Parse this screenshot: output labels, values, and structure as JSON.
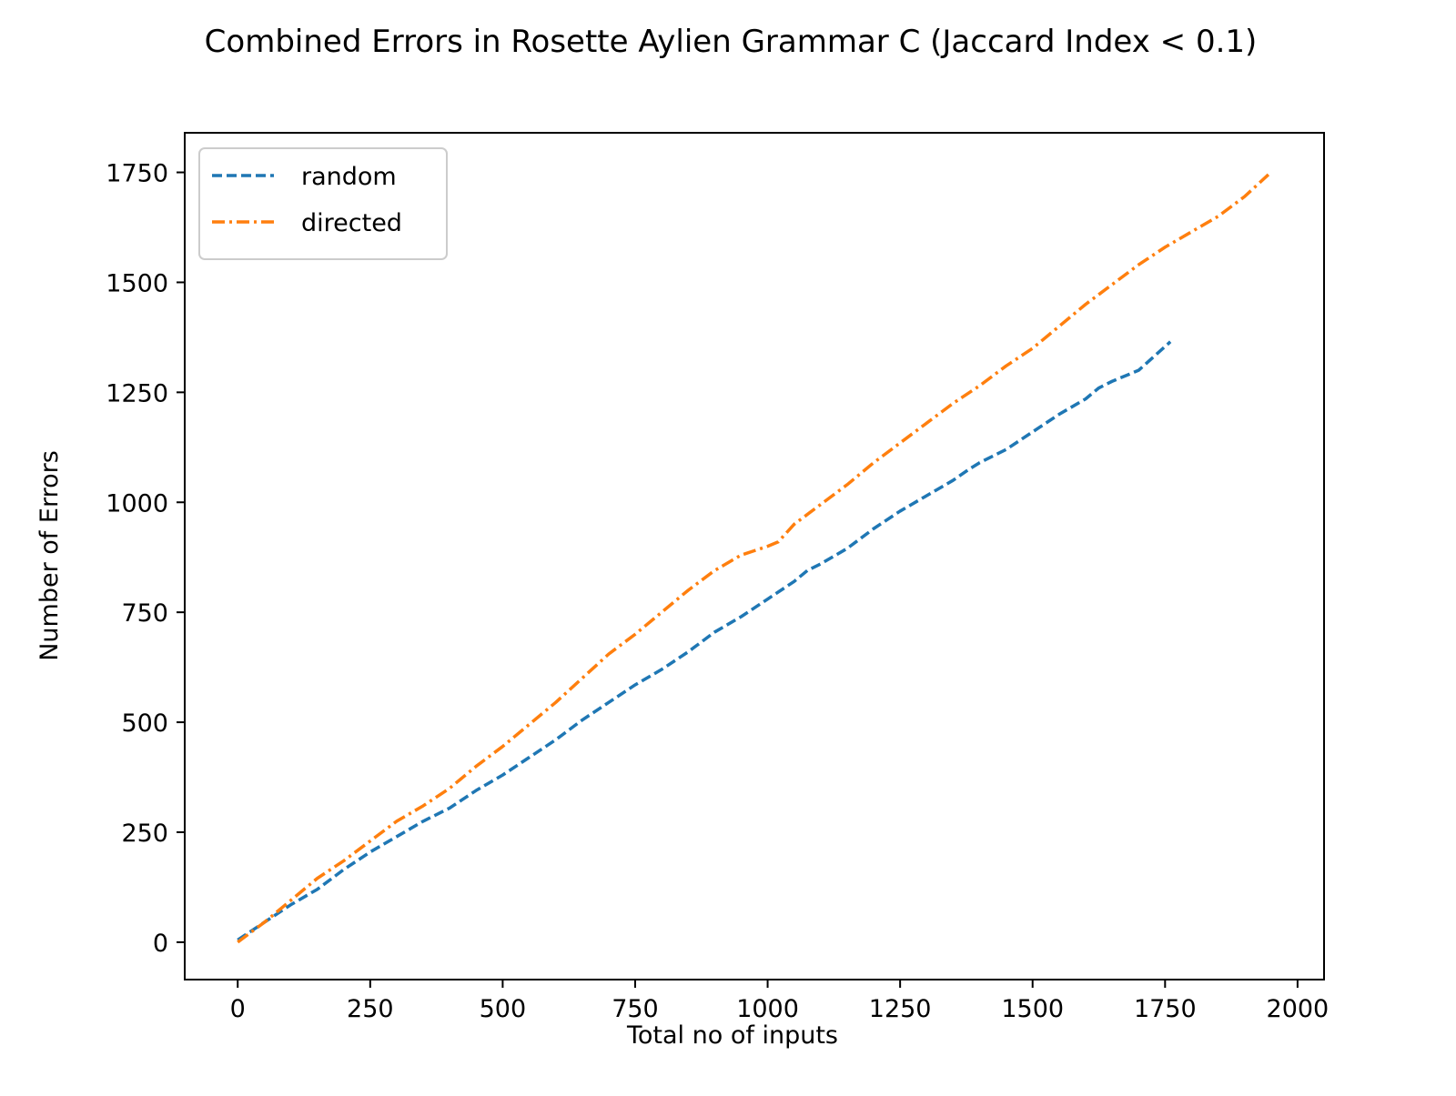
{
  "chart_data": {
    "type": "line",
    "title": "Combined Errors in Rosette Aylien Grammar C (Jaccard Index < 0.1)",
    "xlabel": "Total no of inputs",
    "ylabel": "Number of Errors",
    "xlim": [
      -100,
      2050
    ],
    "ylim": [
      -85,
      1840
    ],
    "xticks": [
      0,
      250,
      500,
      750,
      1000,
      1250,
      1500,
      1750,
      2000
    ],
    "yticks": [
      0,
      250,
      500,
      750,
      1000,
      1250,
      1500,
      1750
    ],
    "xtick_labels": [
      "0",
      "250",
      "500",
      "750",
      "1000",
      "1250",
      "1500",
      "1750",
      "2000"
    ],
    "ytick_labels": [
      "0",
      "250",
      "500",
      "750",
      "1000",
      "1250",
      "1500",
      "1750"
    ],
    "grid": false,
    "legend_position": "top-left",
    "series": [
      {
        "name": "random",
        "color": "#1f77b4",
        "line_style": "dashed",
        "x": [
          0,
          25,
          50,
          100,
          150,
          200,
          250,
          300,
          350,
          400,
          450,
          500,
          550,
          600,
          650,
          700,
          750,
          800,
          850,
          900,
          950,
          1000,
          1050,
          1075,
          1100,
          1150,
          1200,
          1250,
          1300,
          1350,
          1380,
          1400,
          1450,
          1500,
          1550,
          1600,
          1625,
          1650,
          1700,
          1760
        ],
        "y": [
          5,
          25,
          45,
          85,
          120,
          165,
          205,
          240,
          275,
          305,
          345,
          380,
          420,
          460,
          505,
          545,
          585,
          620,
          660,
          705,
          740,
          780,
          820,
          845,
          860,
          895,
          940,
          980,
          1015,
          1050,
          1075,
          1090,
          1120,
          1160,
          1200,
          1235,
          1260,
          1275,
          1300,
          1365
        ]
      },
      {
        "name": "directed",
        "color": "#ff7f0e",
        "line_style": "dashdot",
        "x": [
          0,
          50,
          100,
          150,
          200,
          250,
          300,
          350,
          400,
          450,
          500,
          550,
          600,
          650,
          700,
          750,
          800,
          850,
          900,
          950,
          1000,
          1020,
          1050,
          1100,
          1150,
          1200,
          1250,
          1300,
          1350,
          1400,
          1450,
          1500,
          1550,
          1600,
          1650,
          1700,
          1750,
          1800,
          1850,
          1900,
          1945
        ],
        "y": [
          0,
          45,
          95,
          145,
          185,
          230,
          275,
          310,
          350,
          400,
          445,
          495,
          545,
          600,
          655,
          700,
          750,
          800,
          845,
          880,
          900,
          910,
          950,
          995,
          1040,
          1090,
          1135,
          1180,
          1225,
          1265,
          1310,
          1350,
          1400,
          1450,
          1495,
          1540,
          1580,
          1615,
          1650,
          1695,
          1745
        ]
      }
    ]
  }
}
